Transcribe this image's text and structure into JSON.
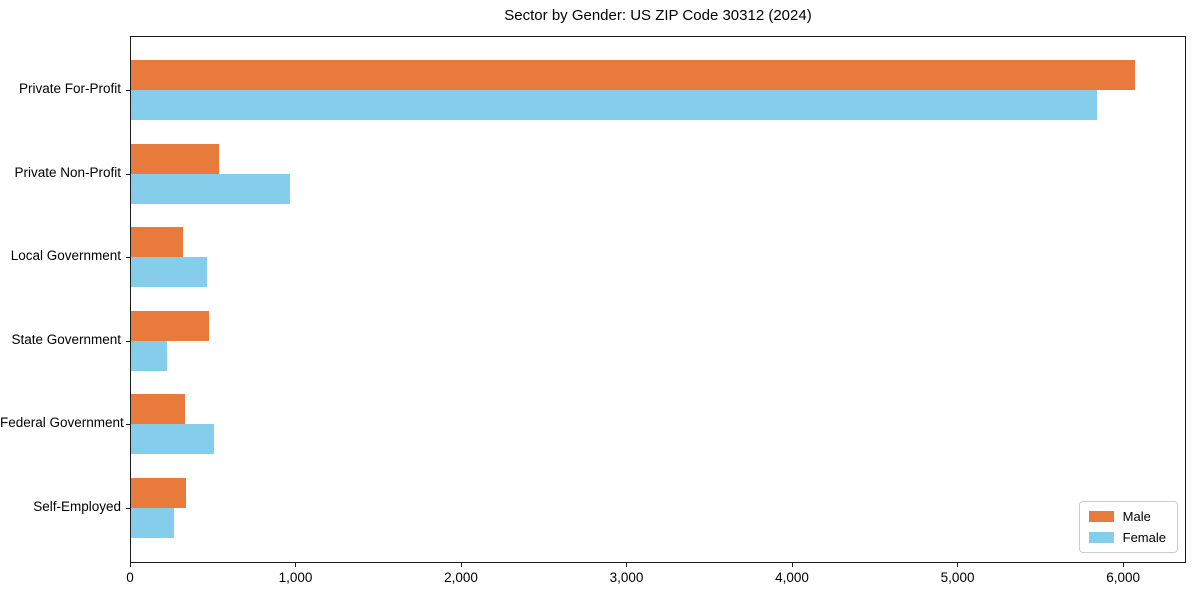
{
  "chart_data": {
    "type": "bar",
    "orientation": "horizontal",
    "title": "Sector by Gender: US ZIP Code 30312 (2024)",
    "categories": [
      "Private For-Profit",
      "Private Non-Profit",
      "Local Government",
      "State Government",
      "Federal Government",
      "Self-Employed"
    ],
    "series": [
      {
        "name": "Male",
        "color": "#e87a3c",
        "values": [
          6075,
          530,
          315,
          475,
          325,
          330
        ]
      },
      {
        "name": "Female",
        "color": "#85ceeb",
        "values": [
          5850,
          960,
          460,
          220,
          505,
          260
        ]
      }
    ],
    "xlabel": "",
    "ylabel": "",
    "xlim": [
      0,
      6380
    ],
    "xticks": [
      0,
      1000,
      2000,
      3000,
      4000,
      5000,
      6000
    ],
    "xtick_labels": [
      "0",
      "1,000",
      "2,000",
      "3,000",
      "4,000",
      "5,000",
      "6,000"
    ],
    "legend_position": "lower right",
    "legend_labels": [
      "Male",
      "Female"
    ],
    "grid": false,
    "background_color": "#ffffff",
    "spine_color": "#1a1a1a"
  }
}
